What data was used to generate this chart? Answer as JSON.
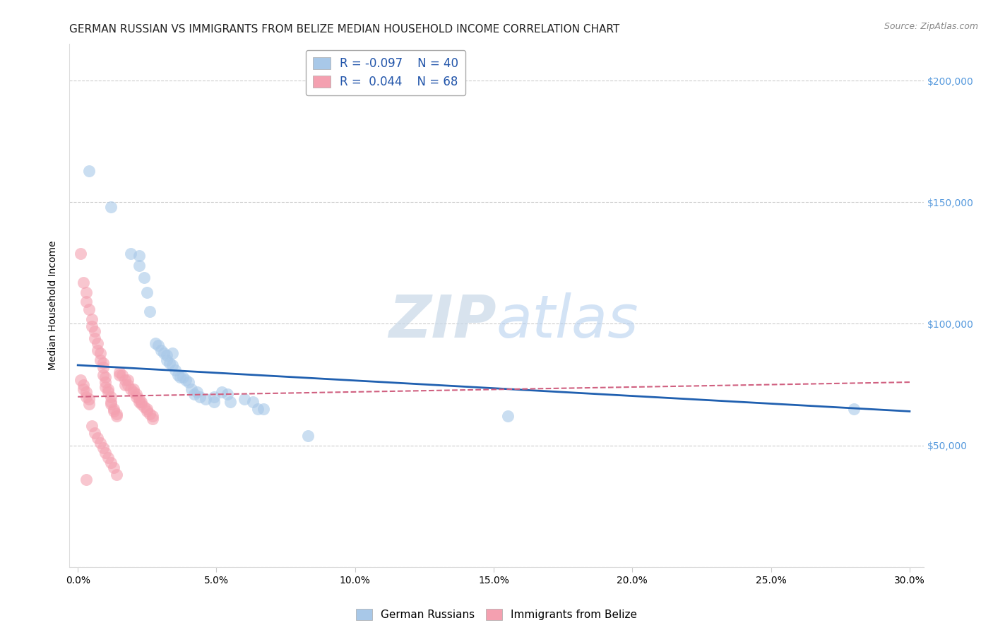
{
  "title": "GERMAN RUSSIAN VS IMMIGRANTS FROM BELIZE MEDIAN HOUSEHOLD INCOME CORRELATION CHART",
  "source": "Source: ZipAtlas.com",
  "ylabel": "Median Household Income",
  "xlabel_ticks": [
    "0.0%",
    "5.0%",
    "10.0%",
    "15.0%",
    "20.0%",
    "25.0%",
    "30.0%"
  ],
  "xlabel_vals": [
    0.0,
    0.05,
    0.1,
    0.15,
    0.2,
    0.25,
    0.3
  ],
  "ytick_vals": [
    0,
    50000,
    100000,
    150000,
    200000
  ],
  "ytick_labels": [
    "",
    "$50,000",
    "$100,000",
    "$150,000",
    "$200,000"
  ],
  "xlim": [
    -0.003,
    0.305
  ],
  "ylim": [
    15000,
    215000
  ],
  "watermark_zip": "ZIP",
  "watermark_atlas": "atlas",
  "legend_blue_R": "-0.097",
  "legend_blue_N": "40",
  "legend_pink_R": "0.044",
  "legend_pink_N": "68",
  "blue_color": "#a8c8e8",
  "pink_color": "#f4a0b0",
  "blue_line_color": "#2060b0",
  "pink_line_color": "#d06080",
  "blue_scatter": [
    [
      0.004,
      163000
    ],
    [
      0.012,
      148000
    ],
    [
      0.019,
      129000
    ],
    [
      0.022,
      128000
    ],
    [
      0.022,
      124000
    ],
    [
      0.024,
      119000
    ],
    [
      0.025,
      113000
    ],
    [
      0.026,
      105000
    ],
    [
      0.028,
      92000
    ],
    [
      0.029,
      91000
    ],
    [
      0.03,
      89000
    ],
    [
      0.031,
      88000
    ],
    [
      0.032,
      87000
    ],
    [
      0.032,
      85000
    ],
    [
      0.033,
      84000
    ],
    [
      0.034,
      88000
    ],
    [
      0.034,
      83000
    ],
    [
      0.035,
      81000
    ],
    [
      0.036,
      79000
    ],
    [
      0.037,
      78000
    ],
    [
      0.038,
      78000
    ],
    [
      0.039,
      77000
    ],
    [
      0.04,
      76000
    ],
    [
      0.041,
      73000
    ],
    [
      0.042,
      71000
    ],
    [
      0.043,
      72000
    ],
    [
      0.044,
      70000
    ],
    [
      0.046,
      69000
    ],
    [
      0.049,
      70000
    ],
    [
      0.049,
      68000
    ],
    [
      0.052,
      72000
    ],
    [
      0.054,
      71000
    ],
    [
      0.055,
      68000
    ],
    [
      0.06,
      69000
    ],
    [
      0.063,
      68000
    ],
    [
      0.065,
      65000
    ],
    [
      0.067,
      65000
    ],
    [
      0.083,
      54000
    ],
    [
      0.155,
      62000
    ],
    [
      0.28,
      65000
    ]
  ],
  "pink_scatter": [
    [
      0.001,
      129000
    ],
    [
      0.002,
      117000
    ],
    [
      0.003,
      113000
    ],
    [
      0.003,
      109000
    ],
    [
      0.004,
      106000
    ],
    [
      0.005,
      102000
    ],
    [
      0.005,
      99000
    ],
    [
      0.006,
      97000
    ],
    [
      0.006,
      94000
    ],
    [
      0.007,
      92000
    ],
    [
      0.007,
      89000
    ],
    [
      0.008,
      88000
    ],
    [
      0.008,
      85000
    ],
    [
      0.009,
      84000
    ],
    [
      0.009,
      82000
    ],
    [
      0.009,
      79000
    ],
    [
      0.01,
      78000
    ],
    [
      0.01,
      76000
    ],
    [
      0.01,
      74000
    ],
    [
      0.011,
      73000
    ],
    [
      0.011,
      72000
    ],
    [
      0.012,
      70000
    ],
    [
      0.012,
      68000
    ],
    [
      0.012,
      67000
    ],
    [
      0.013,
      65000
    ],
    [
      0.013,
      64000
    ],
    [
      0.014,
      63000
    ],
    [
      0.014,
      62000
    ],
    [
      0.015,
      79000
    ],
    [
      0.015,
      80000
    ],
    [
      0.016,
      79000
    ],
    [
      0.017,
      77000
    ],
    [
      0.017,
      75000
    ],
    [
      0.018,
      77000
    ],
    [
      0.018,
      75000
    ],
    [
      0.019,
      73000
    ],
    [
      0.02,
      73000
    ],
    [
      0.02,
      72000
    ],
    [
      0.021,
      71000
    ],
    [
      0.021,
      70000
    ],
    [
      0.022,
      69000
    ],
    [
      0.022,
      68000
    ],
    [
      0.023,
      68000
    ],
    [
      0.023,
      67000
    ],
    [
      0.024,
      66000
    ],
    [
      0.025,
      65000
    ],
    [
      0.025,
      64000
    ],
    [
      0.026,
      63000
    ],
    [
      0.027,
      62000
    ],
    [
      0.027,
      61000
    ],
    [
      0.001,
      77000
    ],
    [
      0.002,
      75000
    ],
    [
      0.002,
      73000
    ],
    [
      0.003,
      72000
    ],
    [
      0.003,
      70000
    ],
    [
      0.004,
      69000
    ],
    [
      0.004,
      67000
    ],
    [
      0.005,
      58000
    ],
    [
      0.006,
      55000
    ],
    [
      0.007,
      53000
    ],
    [
      0.008,
      51000
    ],
    [
      0.009,
      49000
    ],
    [
      0.01,
      47000
    ],
    [
      0.011,
      45000
    ],
    [
      0.012,
      43000
    ],
    [
      0.013,
      41000
    ],
    [
      0.014,
      38000
    ],
    [
      0.003,
      36000
    ]
  ],
  "blue_line_x": [
    0.0,
    0.3
  ],
  "blue_line_y": [
    83000,
    64000
  ],
  "pink_line_x": [
    0.0,
    0.3
  ],
  "pink_line_y": [
    70000,
    76000
  ],
  "grid_color": "#cccccc",
  "bg_color": "#ffffff",
  "title_fontsize": 11,
  "axis_label_fontsize": 10,
  "tick_fontsize": 10,
  "right_tick_color": "#5599dd"
}
